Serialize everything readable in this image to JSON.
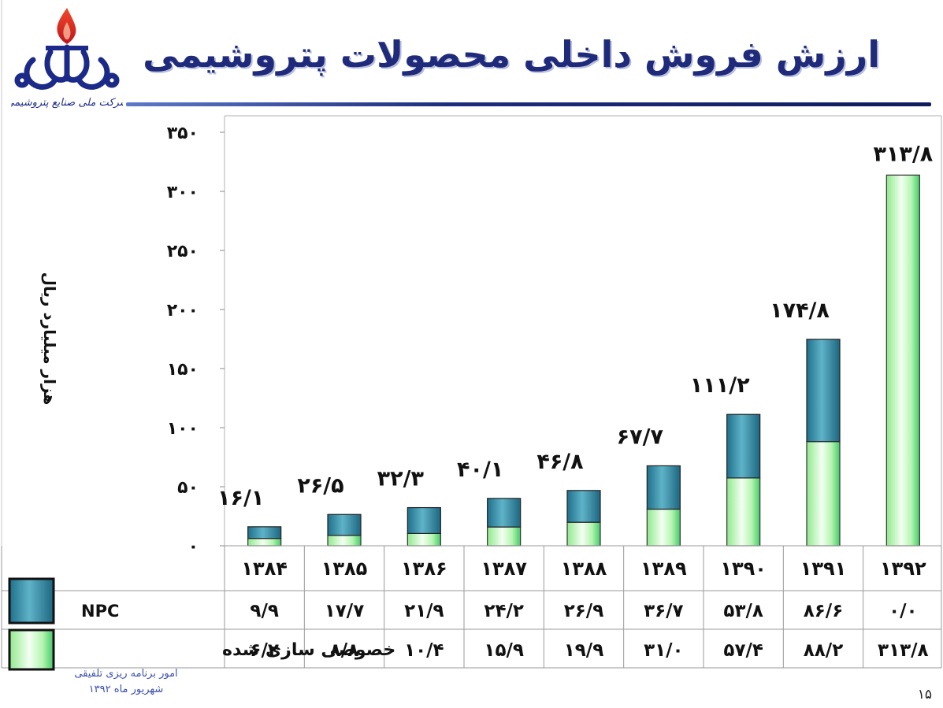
{
  "title": "ارزش فروش داخلی محصولات پتروشیمی",
  "logo_text": "شرکت ملی صنایع پتروشیمی",
  "footnote": {
    "line1": "امور برنامه ریزی تلفیقی",
    "line2": "شهریور ماه ۱۳۹۲"
  },
  "page_number": "۱۵",
  "colors": {
    "npc": "#2f8aa3",
    "private": "#a8f0a0",
    "title": "#1f2a7a"
  },
  "chart_data": {
    "type": "bar",
    "stacked": true,
    "ylabel": "هزار میلیارد ریال",
    "ylim": [
      0,
      350
    ],
    "y_ticks": [
      "۰",
      "۵۰",
      "۱۰۰",
      "۱۵۰",
      "۲۰۰",
      "۲۵۰",
      "۳۰۰",
      "۳۵۰"
    ],
    "categories": [
      "۱۳۸۴",
      "۱۳۸۵",
      "۱۳۸۶",
      "۱۳۸۷",
      "۱۳۸۸",
      "۱۳۸۹",
      "۱۳۹۰",
      "۱۳۹۱",
      "۱۳۹۲"
    ],
    "series": [
      {
        "name": "خصوصی سازی شده",
        "values": [
          6.2,
          8.8,
          10.4,
          15.9,
          19.9,
          31.0,
          57.4,
          88.2,
          313.8
        ],
        "labels": [
          "۶/۲",
          "۸/۸",
          "۱۰/۴",
          "۱۵/۹",
          "۱۹/۹",
          "۳۱/۰",
          "۵۷/۴",
          "۸۸/۲",
          "۳۱۳/۸"
        ]
      },
      {
        "name": "NPC",
        "values": [
          9.9,
          17.7,
          21.9,
          24.2,
          26.9,
          36.7,
          53.8,
          86.6,
          0.0
        ],
        "labels": [
          "۹/۹",
          "۱۷/۷",
          "۲۱/۹",
          "۲۴/۲",
          "۲۶/۹",
          "۳۶/۷",
          "۵۳/۸",
          "۸۶/۶",
          "۰/۰"
        ]
      }
    ],
    "totals": [
      16.1,
      26.5,
      32.3,
      40.1,
      46.8,
      67.7,
      111.2,
      174.8,
      313.8
    ],
    "total_labels": [
      "۱۶/۱",
      "۲۶/۵",
      "۳۲/۳",
      "۴۰/۱",
      "۴۶/۸",
      "۶۷/۷",
      "۱۱۱/۲",
      "۱۷۴/۸",
      "۳۱۳/۸"
    ],
    "grid": false,
    "legend": "data-table-left"
  }
}
